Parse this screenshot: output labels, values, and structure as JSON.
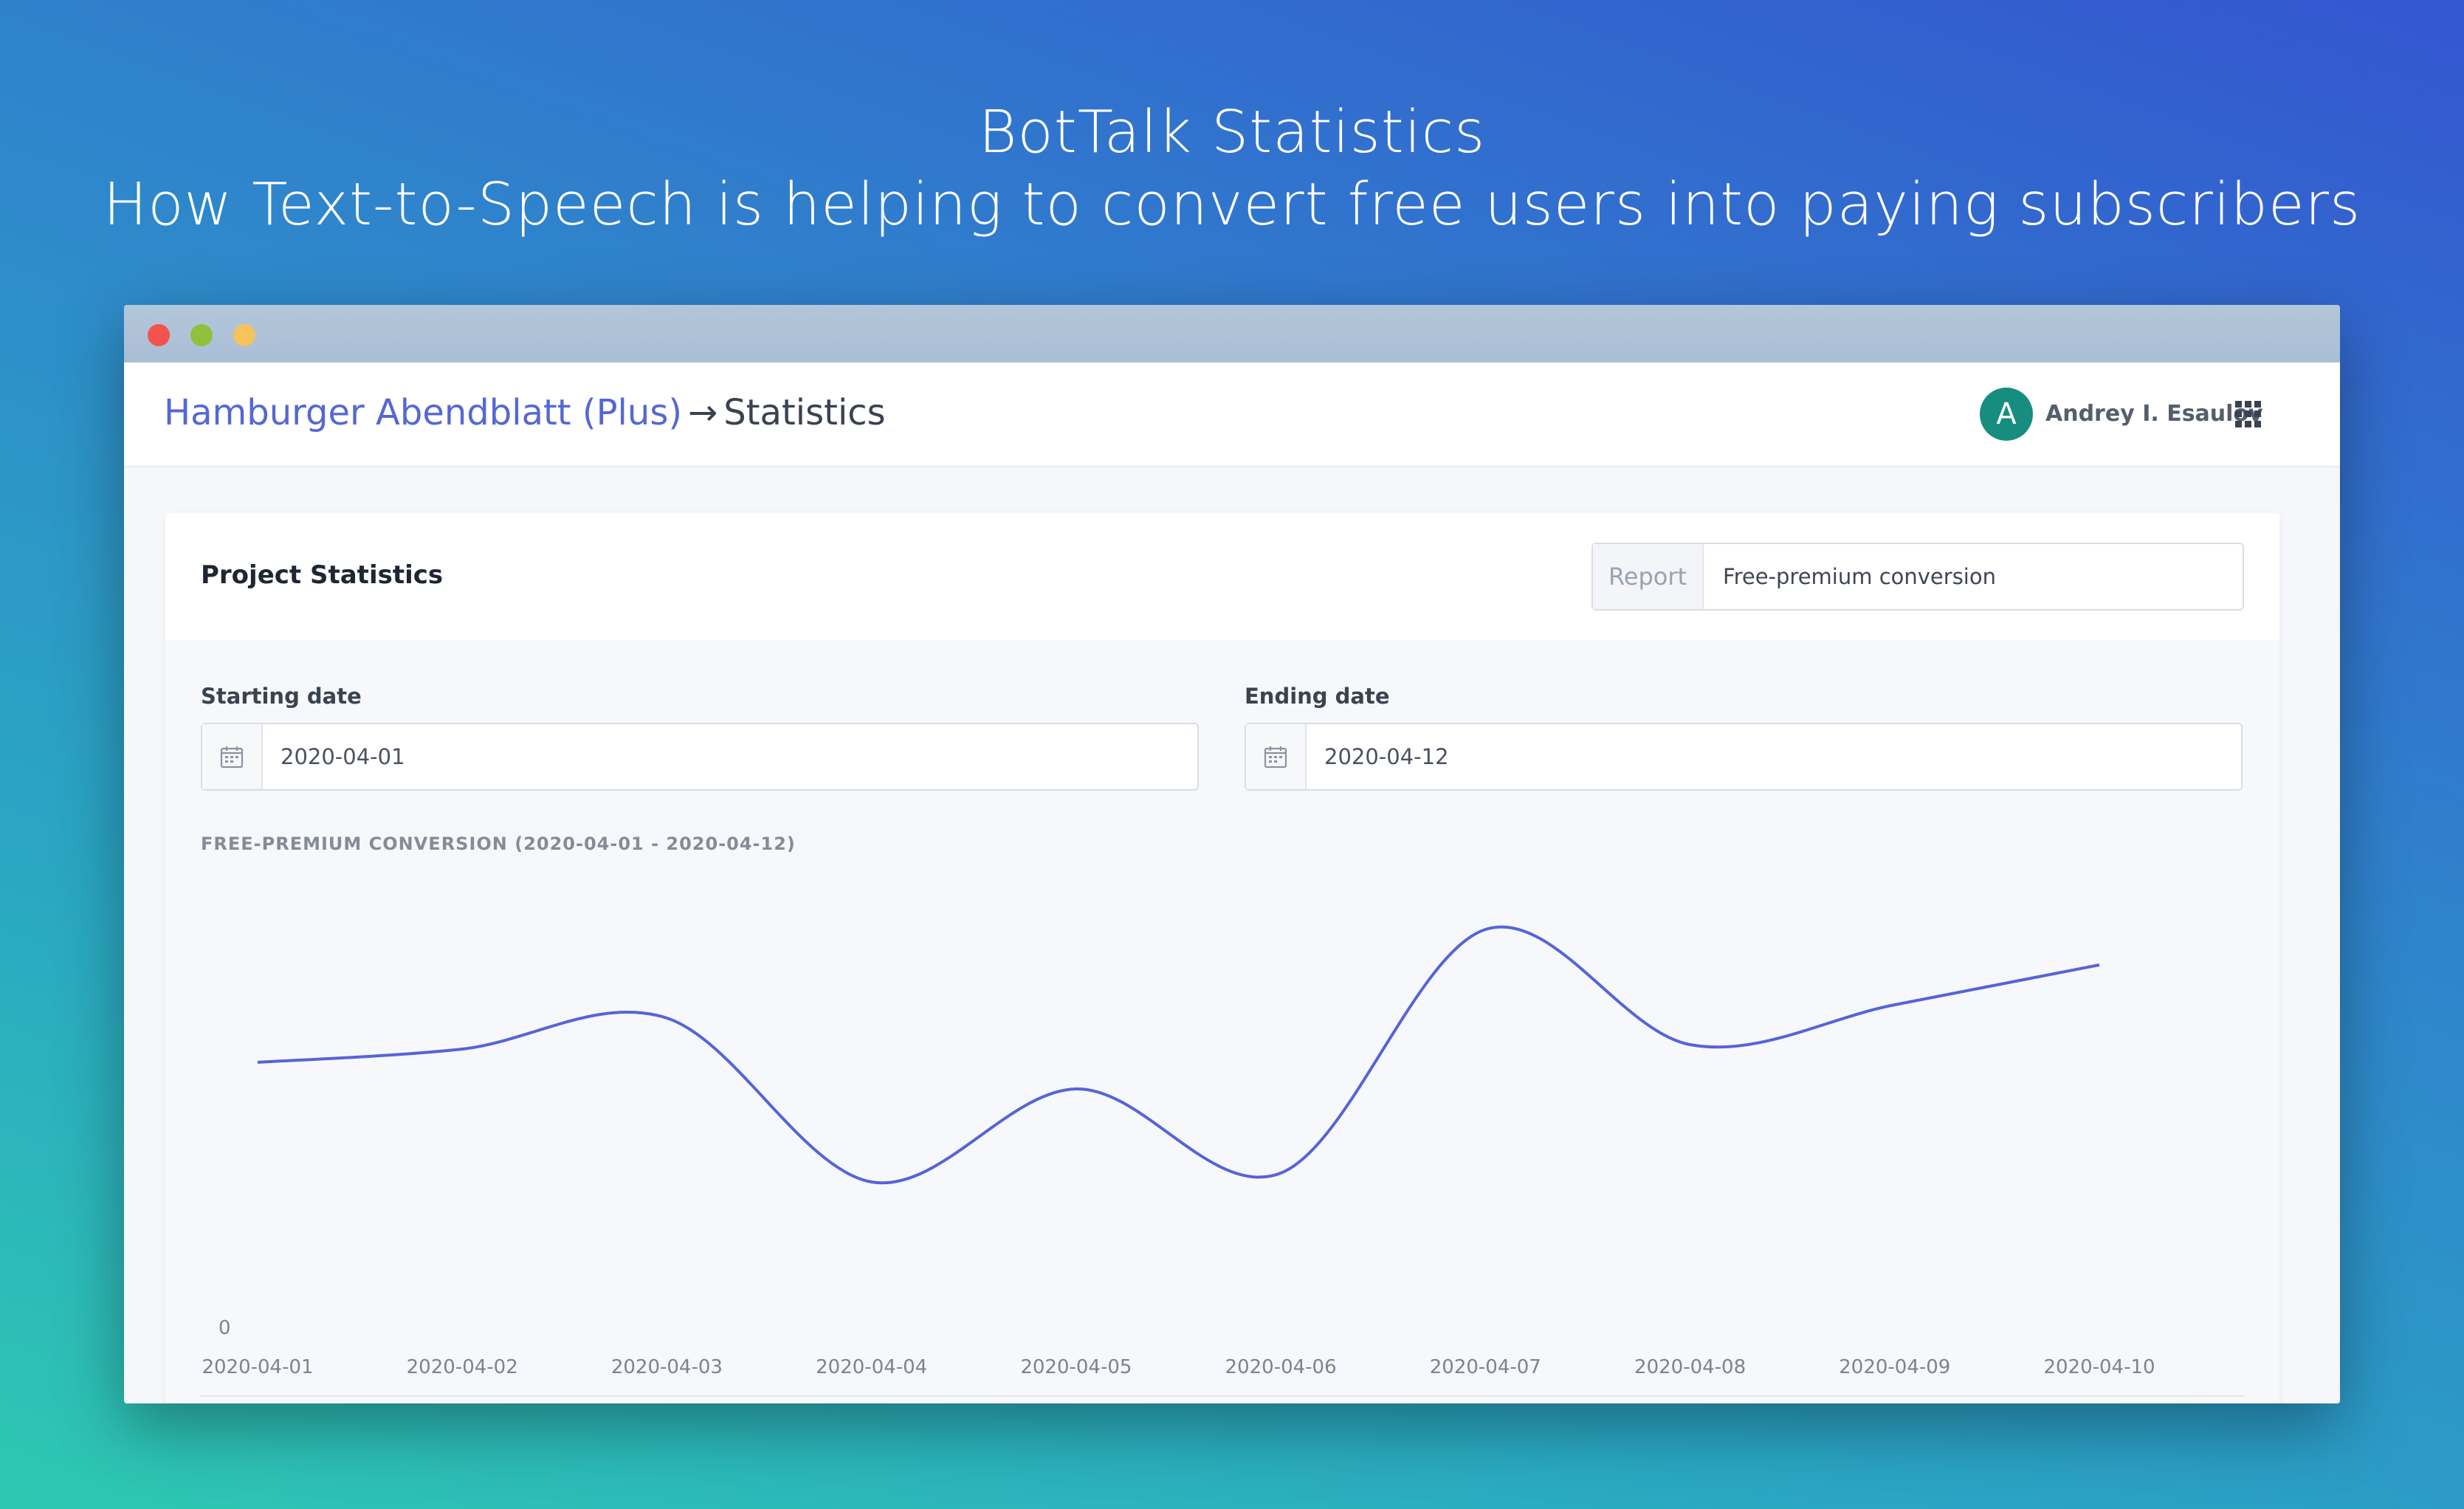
{
  "hero": {
    "title": "BotTalk Statistics",
    "subtitle": "How Text-to-Speech is helping to convert free users into paying subscribers"
  },
  "header": {
    "breadcrumb_link": "Hamburger Abendblatt (Plus)",
    "breadcrumb_arrow": "→",
    "breadcrumb_current": "Statistics",
    "avatar_letter": "A",
    "user_name": "Andrey I. Esaulov",
    "apps_icon": "grid-icon"
  },
  "card": {
    "title": "Project Statistics",
    "report_label": "Report",
    "report_value": "Free-premium conversion",
    "starting_label": "Starting date",
    "starting_value": "2020-04-01",
    "ending_label": "Ending date",
    "ending_value": "2020-04-12",
    "calendar_icon": "calendar-icon"
  },
  "colors": {
    "accent": "#5468d4",
    "avatar": "#168d7e",
    "line": "#5664d8"
  },
  "chart_data": {
    "type": "line",
    "title": "FREE-PREMIUM CONVERSION (2020-04-01 - 2020-04-12)",
    "x": [
      "2020-04-01",
      "2020-04-02",
      "2020-04-03",
      "2020-04-04",
      "2020-04-05",
      "2020-04-06",
      "2020-04-07",
      "2020-04-08",
      "2020-04-09",
      "2020-04-10"
    ],
    "series": [
      {
        "values": [
          0.56,
          0.59,
          0.66,
          0.29,
          0.5,
          0.31,
          0.86,
          0.6,
          0.69,
          0.78
        ]
      }
    ],
    "y_tick_labels": [
      "0"
    ],
    "ylim": [
      0,
      1
    ],
    "grid": false,
    "smooth": true
  }
}
